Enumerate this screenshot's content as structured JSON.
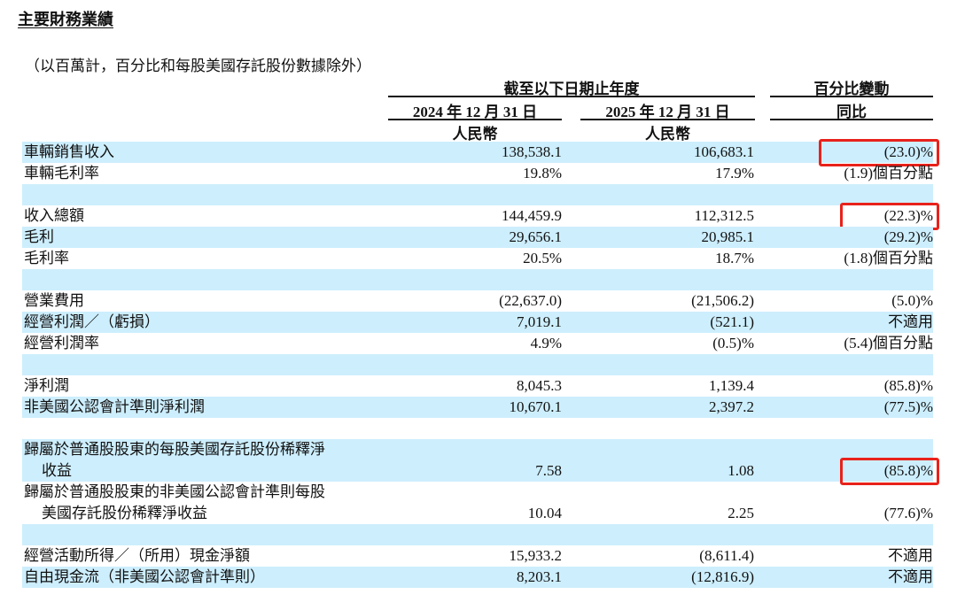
{
  "title": "主要財務業績",
  "note": "（以百萬計，百分比和每股美國存託股份數據除外）",
  "header": {
    "period_group": "截至以下日期止年度",
    "col_2024": "2024 年 12 月 31 日",
    "col_2025": "2025 年 12 月 31 日",
    "currency_2024": "人民幣",
    "currency_2025": "人民幣",
    "change_group": "百分比變動",
    "change_col": "同比"
  },
  "highlight_color": "#e8221b",
  "shade_color": "#cdeefd",
  "rows": [
    {
      "label": [
        "車輛銷售收入"
      ],
      "v2024": "138,538.1",
      "v2025": "106,683.1",
      "change": "(23.0)%",
      "shaded": true,
      "highlighted": true
    },
    {
      "label": [
        "車輛毛利率"
      ],
      "v2024": "19.8%",
      "v2025": "17.9%",
      "change": "(1.9)個百分點",
      "shaded": false
    },
    {
      "label": [
        ""
      ],
      "v2024": "",
      "v2025": "",
      "change": "",
      "shaded": true
    },
    {
      "label": [
        "收入總額"
      ],
      "v2024": "144,459.9",
      "v2025": "112,312.5",
      "change": "(22.3)%",
      "shaded": false,
      "highlighted": true
    },
    {
      "label": [
        "毛利"
      ],
      "v2024": "29,656.1",
      "v2025": "20,985.1",
      "change": "(29.2)%",
      "shaded": true
    },
    {
      "label": [
        "毛利率"
      ],
      "v2024": "20.5%",
      "v2025": "18.7%",
      "change": "(1.8)個百分點",
      "shaded": false
    },
    {
      "label": [
        ""
      ],
      "v2024": "",
      "v2025": "",
      "change": "",
      "shaded": true
    },
    {
      "label": [
        "營業費用"
      ],
      "v2024": "(22,637.0)",
      "v2025": "(21,506.2)",
      "change": "(5.0)%",
      "shaded": false
    },
    {
      "label": [
        "經營利潤／（虧損）"
      ],
      "v2024": "7,019.1",
      "v2025": "(521.1)",
      "change": "不適用",
      "shaded": true
    },
    {
      "label": [
        "經營利潤率"
      ],
      "v2024": "4.9%",
      "v2025": "(0.5)%",
      "change": "(5.4)個百分點",
      "shaded": false
    },
    {
      "label": [
        ""
      ],
      "v2024": "",
      "v2025": "",
      "change": "",
      "shaded": true
    },
    {
      "label": [
        "淨利潤"
      ],
      "v2024": "8,045.3",
      "v2025": "1,139.4",
      "change": "(85.8)%",
      "shaded": false
    },
    {
      "label": [
        "非美國公認會計準則淨利潤"
      ],
      "v2024": "10,670.1",
      "v2025": "2,397.2",
      "change": "(77.5)%",
      "shaded": true
    },
    {
      "label": [
        ""
      ],
      "v2024": "",
      "v2025": "",
      "change": "",
      "shaded": false
    },
    {
      "label": [
        "歸屬於普通股股東的每股美國存託股份稀釋淨",
        "收益"
      ],
      "v2024": "7.58",
      "v2025": "1.08",
      "change": "(85.8)%",
      "shaded": true,
      "highlighted": true
    },
    {
      "label": [
        "歸屬於普通股股東的非美國公認會計準則每股",
        "美國存託股份稀釋淨收益"
      ],
      "v2024": "10.04",
      "v2025": "2.25",
      "change": "(77.6)%",
      "shaded": false
    },
    {
      "label": [
        ""
      ],
      "v2024": "",
      "v2025": "",
      "change": "",
      "shaded": true
    },
    {
      "label": [
        "經營活動所得／（所用）現金淨額"
      ],
      "v2024": "15,933.2",
      "v2025": "(8,611.4)",
      "change": "不適用",
      "shaded": false
    },
    {
      "label": [
        "自由現金流（非美國公認會計準則）"
      ],
      "v2024": "8,203.1",
      "v2025": "(12,816.9)",
      "change": "不適用",
      "shaded": true
    }
  ]
}
